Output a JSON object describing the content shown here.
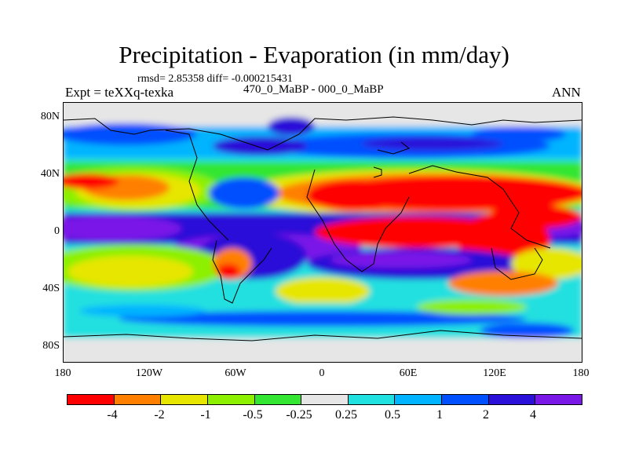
{
  "header": {
    "title": "Precipitation - Evaporation (in mm/day)",
    "stats": "rmsd= 2.85358 diff= -0.000215431",
    "expt": "Expt = teXXq-texka",
    "subtitle": "470_0_MaBP - 000_0_MaBP",
    "season": "ANN"
  },
  "axes": {
    "y_ticks": [
      "80N",
      "40N",
      "0",
      "40S",
      "80S"
    ],
    "x_ticks": [
      "180",
      "120W",
      "60W",
      "0",
      "60E",
      "120E",
      "180"
    ]
  },
  "colorbar": {
    "labels": [
      "-4",
      "-2",
      "-1",
      "-0.5",
      "-0.25",
      "0.25",
      "0.5",
      "1",
      "2",
      "4"
    ],
    "colors": [
      "#ff0000",
      "#ff8000",
      "#e6e600",
      "#8cf000",
      "#32e632",
      "#e6e6e6",
      "#20e0e0",
      "#00b4ff",
      "#0050ff",
      "#2a10d8",
      "#7a18e8"
    ]
  },
  "colors": {
    "land": "#e6e6e6",
    "positive_strong": "#2a10d8",
    "negative_strong": "#ff0000"
  }
}
